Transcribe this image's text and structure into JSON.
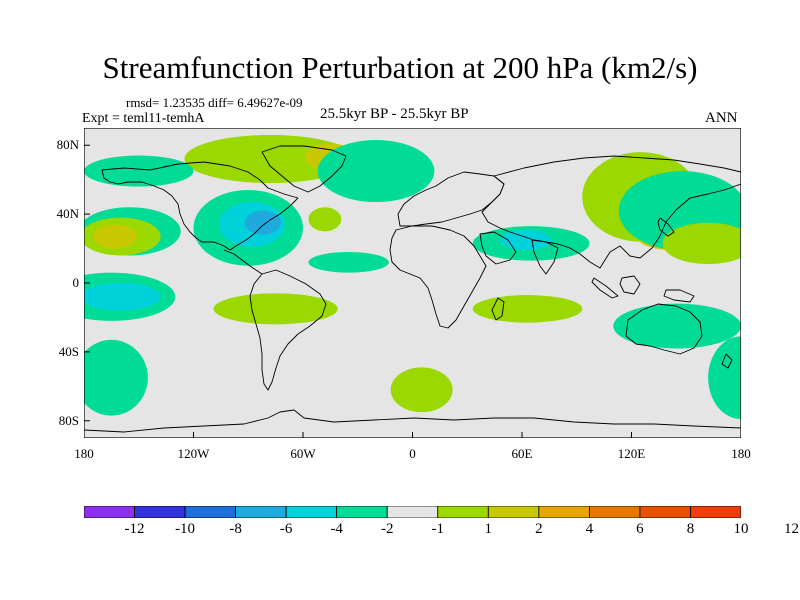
{
  "title": "Streamfunction Perturbation at 200 hPa (km2/s)",
  "stats": "rmsd= 1.23535  diff= 6.49627e-09",
  "experiment": "Expt = teml11-temhA",
  "period": "25.5kyr BP - 25.5kyr BP",
  "season": "ANN",
  "map": {
    "projection": "cylindrical-equidistant",
    "lon_range": [
      -180,
      180
    ],
    "lat_range": [
      -90,
      90
    ],
    "lat_labels": [
      {
        "lat": 80,
        "text": "80N"
      },
      {
        "lat": 40,
        "text": "40N"
      },
      {
        "lat": 0,
        "text": "0"
      },
      {
        "lat": -40,
        "text": "40S"
      },
      {
        "lat": -80,
        "text": "80S"
      }
    ],
    "lon_labels": [
      {
        "lon": -180,
        "text": "180"
      },
      {
        "lon": -120,
        "text": "120W"
      },
      {
        "lon": -60,
        "text": "60W"
      },
      {
        "lon": 0,
        "text": "0"
      },
      {
        "lon": 60,
        "text": "60E"
      },
      {
        "lon": 120,
        "text": "120E"
      },
      {
        "lon": 180,
        "text": "180"
      }
    ],
    "fields": [
      {
        "level": 1,
        "color": "#9ad800",
        "lon": 5,
        "lat": -62,
        "rlon": 17,
        "rlat": 13
      },
      {
        "level": 1,
        "color": "#9ad800",
        "lon": -75,
        "lat": -15,
        "rlon": 34,
        "rlat": 9
      },
      {
        "level": 1,
        "color": "#9ad800",
        "lon": 63,
        "lat": -15,
        "rlon": 30,
        "rlat": 8
      },
      {
        "level": 1,
        "color": "#9ad800",
        "lon": 125,
        "lat": 50,
        "rlon": 32,
        "rlat": 26
      },
      {
        "level": 1,
        "color": "#9ad800",
        "lon": -48,
        "lat": 37,
        "rlon": 9,
        "rlat": 7
      },
      {
        "level": 2,
        "color": "#c8c800",
        "lon": 143,
        "lat": 27,
        "rlon": 20,
        "rlat": 8
      },
      {
        "level": 1,
        "color": "#9ad800",
        "lon": -78,
        "lat": 72,
        "rlon": 47,
        "rlat": 14
      },
      {
        "level": 2,
        "color": "#c8c800",
        "lon": -45,
        "lat": 73,
        "rlon": 14,
        "rlat": 8
      },
      {
        "level": -1,
        "color": "#00dc96",
        "lon": -90,
        "lat": 32,
        "rlon": 30,
        "rlat": 22
      },
      {
        "level": -2,
        "color": "#00d2dc",
        "lon": -88,
        "lat": 34,
        "rlon": 18,
        "rlat": 13
      },
      {
        "level": -3,
        "color": "#1eaadc",
        "lon": -82,
        "lat": 35,
        "rlon": 10,
        "rlat": 7
      },
      {
        "level": -1,
        "color": "#00dc96",
        "lon": -165,
        "lat": -8,
        "rlon": 35,
        "rlat": 14
      },
      {
        "level": -2,
        "color": "#00d2dc",
        "lon": -160,
        "lat": -8,
        "rlon": 22,
        "rlat": 8
      },
      {
        "level": -1,
        "color": "#00dc96",
        "lon": 65,
        "lat": 23,
        "rlon": 32,
        "rlat": 10
      },
      {
        "level": -2,
        "color": "#00d2dc",
        "lon": 62,
        "lat": 25,
        "rlon": 14,
        "rlat": 6
      },
      {
        "level": -1,
        "color": "#00dc96",
        "lon": 145,
        "lat": -25,
        "rlon": 35,
        "rlat": 13
      },
      {
        "level": -1,
        "color": "#00dc96",
        "lon": -165,
        "lat": -55,
        "rlon": 20,
        "rlat": 22
      },
      {
        "level": -1,
        "color": "#00dc96",
        "lon": 180,
        "lat": -55,
        "rlon": 18,
        "rlat": 24
      },
      {
        "level": -1,
        "color": "#00dc96",
        "lon": 148,
        "lat": 42,
        "rlon": 35,
        "rlat": 23
      },
      {
        "level": 1,
        "color": "#9ad800",
        "lon": 162,
        "lat": 23,
        "rlon": 25,
        "rlat": 12
      },
      {
        "level": -1,
        "color": "#00dc96",
        "lon": -20,
        "lat": 65,
        "rlon": 32,
        "rlat": 18
      },
      {
        "level": -1,
        "color": "#00dc96",
        "lon": -150,
        "lat": 65,
        "rlon": 30,
        "rlat": 9
      },
      {
        "level": -1,
        "color": "#00dc96",
        "lon": -155,
        "lat": 30,
        "rlon": 28,
        "rlat": 14
      },
      {
        "level": 1,
        "color": "#9ad800",
        "lon": -160,
        "lat": 27,
        "rlon": 22,
        "rlat": 11
      },
      {
        "level": 2,
        "color": "#c8c800",
        "lon": -163,
        "lat": 27,
        "rlon": 12,
        "rlat": 7
      },
      {
        "level": -1,
        "color": "#00dc96",
        "lon": -35,
        "lat": 12,
        "rlon": 22,
        "rlat": 6
      }
    ]
  },
  "colorbar": {
    "colors": [
      "#8c30f0",
      "#3232dc",
      "#1e6edc",
      "#1eaadc",
      "#00d2dc",
      "#00dc96",
      "#e5e5e5",
      "#9ad800",
      "#c8c800",
      "#e6a500",
      "#e67800",
      "#e65000",
      "#f03c0a"
    ],
    "labels": [
      "-12",
      "-10",
      "-8",
      "-6",
      "-4",
      "-2",
      "-1",
      "1",
      "2",
      "4",
      "6",
      "8",
      "10",
      "12"
    ]
  }
}
